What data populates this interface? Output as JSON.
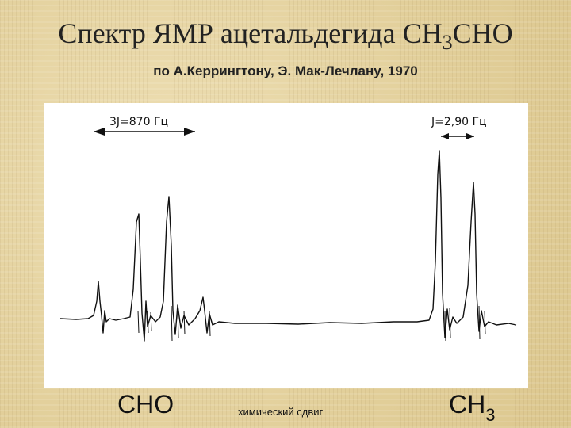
{
  "title": {
    "main": "Спектр ЯМР ацетальдегида CH",
    "sub_digit": "3",
    "tail": "CHO"
  },
  "subtitle": "по А.Керрингтону, Э. Мак-Лечлану, 1970",
  "annotations": {
    "left_coupling": "3J=870 Гц",
    "right_coupling": "J=2,90 Гц"
  },
  "labels": {
    "cho": "CHO",
    "axis": "химический сдвиг",
    "ch3_main": "CH",
    "ch3_sub": "3"
  }
}
